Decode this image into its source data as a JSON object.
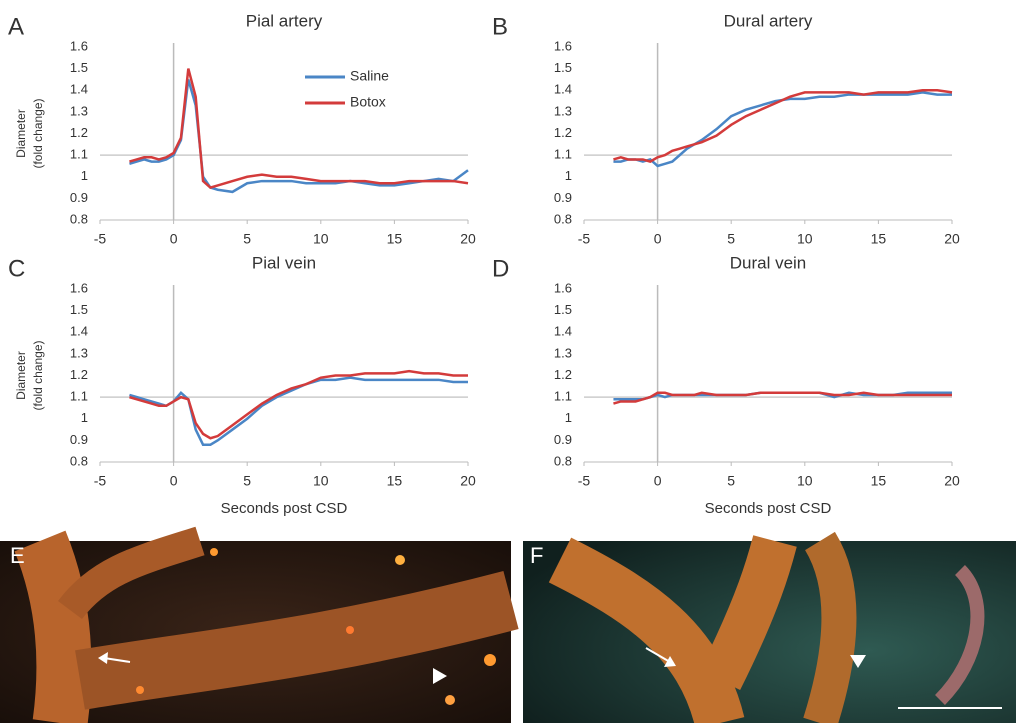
{
  "chart_data": [
    {
      "type": "line",
      "panel": "A",
      "title": "Pial artery",
      "ylabel": [
        "Diameter",
        "(fold change)"
      ],
      "x": [
        -3,
        -2.5,
        -2,
        -1.5,
        -1,
        -0.5,
        0,
        0.5,
        1,
        1.5,
        2,
        2.5,
        3,
        4,
        5,
        6,
        7,
        8,
        9,
        10,
        11,
        12,
        13,
        14,
        15,
        16,
        17,
        18,
        19,
        20
      ],
      "series": [
        {
          "name": "Saline",
          "color": "#4a86c6",
          "values": [
            1.06,
            1.07,
            1.08,
            1.07,
            1.07,
            1.08,
            1.1,
            1.17,
            1.45,
            1.33,
            1.0,
            0.95,
            0.94,
            0.93,
            0.97,
            0.98,
            0.98,
            0.98,
            0.97,
            0.97,
            0.97,
            0.98,
            0.97,
            0.96,
            0.96,
            0.97,
            0.98,
            0.99,
            0.98,
            1.03
          ]
        },
        {
          "name": "Botox",
          "color": "#d33b3b",
          "values": [
            1.07,
            1.08,
            1.09,
            1.09,
            1.08,
            1.09,
            1.11,
            1.18,
            1.5,
            1.37,
            0.98,
            0.95,
            0.96,
            0.98,
            1.0,
            1.01,
            1.0,
            1.0,
            0.99,
            0.98,
            0.98,
            0.98,
            0.98,
            0.97,
            0.97,
            0.98,
            0.98,
            0.98,
            0.98,
            0.97
          ]
        }
      ],
      "xlim": [
        -5,
        20
      ],
      "xticks": [
        -5,
        0,
        5,
        10,
        15,
        20
      ],
      "ylim": [
        0.8,
        1.6
      ],
      "yticks": [
        0.8,
        0.9,
        1,
        1.1,
        1.2,
        1.3,
        1.4,
        1.5,
        1.6
      ],
      "hline": 1.1,
      "vline": 0,
      "legend": true
    },
    {
      "type": "line",
      "panel": "B",
      "title": "Dural artery",
      "x": [
        -3,
        -2.5,
        -2,
        -1.5,
        -1,
        -0.5,
        0,
        0.5,
        1,
        1.5,
        2,
        2.5,
        3,
        4,
        5,
        6,
        7,
        8,
        9,
        10,
        11,
        12,
        13,
        14,
        15,
        16,
        17,
        18,
        19,
        20
      ],
      "series": [
        {
          "color": "#4a86c6",
          "values": [
            1.07,
            1.07,
            1.08,
            1.08,
            1.07,
            1.08,
            1.05,
            1.06,
            1.07,
            1.1,
            1.13,
            1.15,
            1.17,
            1.22,
            1.28,
            1.31,
            1.33,
            1.35,
            1.36,
            1.36,
            1.37,
            1.37,
            1.38,
            1.38,
            1.38,
            1.38,
            1.38,
            1.39,
            1.38,
            1.38
          ]
        },
        {
          "color": "#d33b3b",
          "values": [
            1.08,
            1.09,
            1.08,
            1.08,
            1.08,
            1.07,
            1.09,
            1.1,
            1.12,
            1.13,
            1.14,
            1.15,
            1.16,
            1.19,
            1.24,
            1.28,
            1.31,
            1.34,
            1.37,
            1.39,
            1.39,
            1.39,
            1.39,
            1.38,
            1.39,
            1.39,
            1.39,
            1.4,
            1.4,
            1.39
          ]
        }
      ],
      "xlim": [
        -5,
        20
      ],
      "xticks": [
        -5,
        0,
        5,
        10,
        15,
        20
      ],
      "ylim": [
        0.8,
        1.6
      ],
      "yticks": [
        0.8,
        0.9,
        1,
        1.1,
        1.2,
        1.3,
        1.4,
        1.5,
        1.6
      ],
      "hline": 1.1,
      "vline": 0
    },
    {
      "type": "line",
      "panel": "C",
      "title": "Pial vein",
      "ylabel": [
        "Diameter",
        "(fold change)"
      ],
      "xlabel": "Seconds post CSD",
      "x": [
        -3,
        -2.5,
        -2,
        -1.5,
        -1,
        -0.5,
        0,
        0.5,
        1,
        1.5,
        2,
        2.5,
        3,
        4,
        5,
        6,
        7,
        8,
        9,
        10,
        11,
        12,
        13,
        14,
        15,
        16,
        17,
        18,
        19,
        20
      ],
      "series": [
        {
          "color": "#4a86c6",
          "values": [
            1.11,
            1.1,
            1.09,
            1.08,
            1.07,
            1.06,
            1.08,
            1.12,
            1.09,
            0.95,
            0.88,
            0.88,
            0.9,
            0.95,
            1.0,
            1.06,
            1.1,
            1.13,
            1.16,
            1.18,
            1.18,
            1.19,
            1.18,
            1.18,
            1.18,
            1.18,
            1.18,
            1.18,
            1.17,
            1.17
          ]
        },
        {
          "color": "#d33b3b",
          "values": [
            1.1,
            1.09,
            1.08,
            1.07,
            1.06,
            1.06,
            1.08,
            1.1,
            1.09,
            0.98,
            0.93,
            0.91,
            0.92,
            0.97,
            1.02,
            1.07,
            1.11,
            1.14,
            1.16,
            1.19,
            1.2,
            1.2,
            1.21,
            1.21,
            1.21,
            1.22,
            1.21,
            1.21,
            1.2,
            1.2
          ]
        }
      ],
      "xlim": [
        -5,
        20
      ],
      "xticks": [
        -5,
        0,
        5,
        10,
        15,
        20
      ],
      "ylim": [
        0.8,
        1.6
      ],
      "yticks": [
        0.8,
        0.9,
        1,
        1.1,
        1.2,
        1.3,
        1.4,
        1.5,
        1.6
      ],
      "hline": 1.1,
      "vline": 0
    },
    {
      "type": "line",
      "panel": "D",
      "title": "Dural vein",
      "xlabel": "Seconds post CSD",
      "x": [
        -3,
        -2.5,
        -2,
        -1.5,
        -1,
        -0.5,
        0,
        0.5,
        1,
        1.5,
        2,
        2.5,
        3,
        4,
        5,
        6,
        7,
        8,
        9,
        10,
        11,
        12,
        13,
        14,
        15,
        16,
        17,
        18,
        19,
        20
      ],
      "series": [
        {
          "color": "#4a86c6",
          "values": [
            1.09,
            1.09,
            1.09,
            1.09,
            1.09,
            1.1,
            1.11,
            1.1,
            1.11,
            1.11,
            1.11,
            1.11,
            1.11,
            1.11,
            1.11,
            1.11,
            1.12,
            1.12,
            1.12,
            1.12,
            1.12,
            1.1,
            1.12,
            1.11,
            1.11,
            1.11,
            1.12,
            1.12,
            1.12,
            1.12
          ]
        },
        {
          "color": "#d33b3b",
          "values": [
            1.07,
            1.08,
            1.08,
            1.08,
            1.09,
            1.1,
            1.12,
            1.12,
            1.11,
            1.11,
            1.11,
            1.11,
            1.12,
            1.11,
            1.11,
            1.11,
            1.12,
            1.12,
            1.12,
            1.12,
            1.12,
            1.11,
            1.11,
            1.12,
            1.11,
            1.11,
            1.11,
            1.11,
            1.11,
            1.11
          ]
        }
      ],
      "xlim": [
        -5,
        20
      ],
      "xticks": [
        -5,
        0,
        5,
        10,
        15,
        20
      ],
      "ylim": [
        0.8,
        1.6
      ],
      "yticks": [
        0.8,
        0.9,
        1,
        1.1,
        1.2,
        1.3,
        1.4,
        1.5,
        1.6
      ],
      "hline": 1.1,
      "vline": 0
    }
  ],
  "images": [
    {
      "label": "E"
    },
    {
      "label": "F"
    }
  ]
}
